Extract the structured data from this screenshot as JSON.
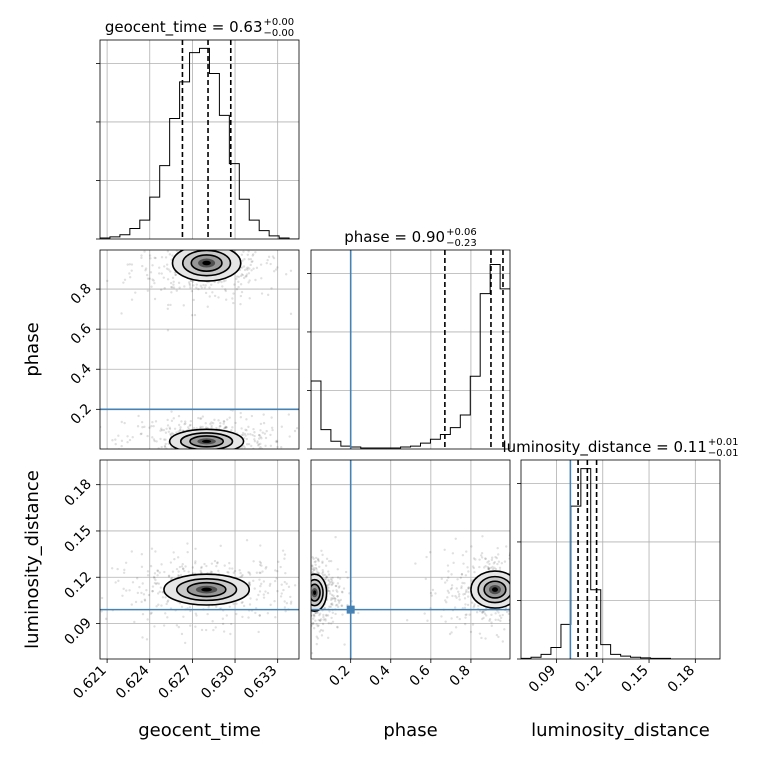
{
  "chart_data": {
    "type": "corner",
    "parameters": [
      "geocent_time",
      "phase",
      "luminosity_distance"
    ],
    "truths": {
      "phase": 0.2,
      "luminosity_distance": 0.099
    },
    "truth_color": "#4682b4",
    "titles": [
      {
        "param": "geocent_time",
        "text": "geocent_time = 0.63",
        "sup": "+0.00",
        "sub": "−0.00"
      },
      {
        "param": "phase",
        "text": "phase = 0.90",
        "sup": "+0.06",
        "sub": "−0.23"
      },
      {
        "param": "luminosity_distance",
        "text": "luminosity_distance = 0.11",
        "sup": "+0.01",
        "sub": "−0.01"
      }
    ],
    "axis_labels": [
      "geocent_time",
      "phase",
      "luminosity_distance"
    ],
    "ranges": {
      "geocent_time": [
        0.6205,
        0.6345
      ],
      "phase": [
        0.002,
        0.995
      ],
      "luminosity_distance": [
        0.067,
        0.196
      ]
    },
    "ticks": {
      "geocent_time": [
        "0.621",
        "0.624",
        "0.627",
        "0.630",
        "0.633"
      ],
      "phase": [
        "0.2",
        "0.4",
        "0.6",
        "0.8"
      ],
      "phase_y": [
        "0.2",
        "0.4",
        "0.6",
        "0.8"
      ],
      "luminosity_distance": [
        "0.09",
        "0.12",
        "0.15",
        "0.18"
      ]
    },
    "quantiles": {
      "geocent_time": [
        0.6263,
        0.6281,
        0.6297
      ],
      "phase": [
        0.67,
        0.9,
        0.96
      ],
      "luminosity_distance": [
        0.104,
        0.11,
        0.116
      ]
    },
    "hist_geocent_time": {
      "edges": [
        0.6205,
        0.6212,
        0.6219,
        0.6226,
        0.6233,
        0.624,
        0.6247,
        0.6254,
        0.6261,
        0.6268,
        0.6275,
        0.6282,
        0.6289,
        0.6296,
        0.6303,
        0.631,
        0.6317,
        0.6324,
        0.6331,
        0.6338,
        0.6345
      ],
      "counts": [
        1,
        2,
        4,
        10,
        18,
        40,
        70,
        115,
        150,
        178,
        182,
        158,
        118,
        72,
        38,
        18,
        8,
        3,
        1,
        0
      ],
      "ymax": 190
    },
    "hist_phase": {
      "edges": [
        0.002,
        0.0517,
        0.1013,
        0.151,
        0.2007,
        0.2503,
        0.3,
        0.3497,
        0.3993,
        0.449,
        0.4987,
        0.5483,
        0.598,
        0.6477,
        0.6973,
        0.747,
        0.7967,
        0.8463,
        0.896,
        0.9457,
        0.995
      ],
      "counts": [
        70,
        20,
        8,
        3,
        2,
        1,
        1,
        1,
        1,
        2,
        3,
        6,
        10,
        15,
        22,
        35,
        75,
        160,
        190,
        165
      ],
      "ymax": 205
    },
    "hist_luminosity_distance": {
      "edges": [
        0.067,
        0.0735,
        0.08,
        0.0864,
        0.0929,
        0.0993,
        0.1058,
        0.1122,
        0.1187,
        0.1251,
        0.1316,
        0.138,
        0.1445,
        0.151,
        0.1574,
        0.1639,
        0.1703,
        0.1768,
        0.1832,
        0.1897,
        0.196
      ],
      "counts": [
        1,
        3,
        8,
        20,
        60,
        265,
        330,
        120,
        25,
        8,
        5,
        3,
        2,
        1,
        1,
        0,
        0,
        0,
        0,
        0
      ],
      "ymax": 345
    },
    "density_2d": [
      {
        "x": "geocent_time",
        "y": "phase",
        "modes": [
          {
            "x": 0.628,
            "y": 0.93,
            "sx": 0.0012,
            "sy": 0.045
          },
          {
            "x": 0.628,
            "y": 0.04,
            "sx": 0.0013,
            "sy": 0.03
          }
        ]
      },
      {
        "x": "geocent_time",
        "y": "luminosity_distance",
        "modes": [
          {
            "x": 0.628,
            "y": 0.112,
            "sx": 0.0015,
            "sy": 0.005
          }
        ]
      },
      {
        "x": "phase",
        "y": "luminosity_distance",
        "modes": [
          {
            "x": 0.92,
            "y": 0.112,
            "sx": 0.06,
            "sy": 0.006
          },
          {
            "x": 0.02,
            "y": 0.11,
            "sx": 0.03,
            "sy": 0.006
          }
        ]
      }
    ],
    "grid": true
  }
}
